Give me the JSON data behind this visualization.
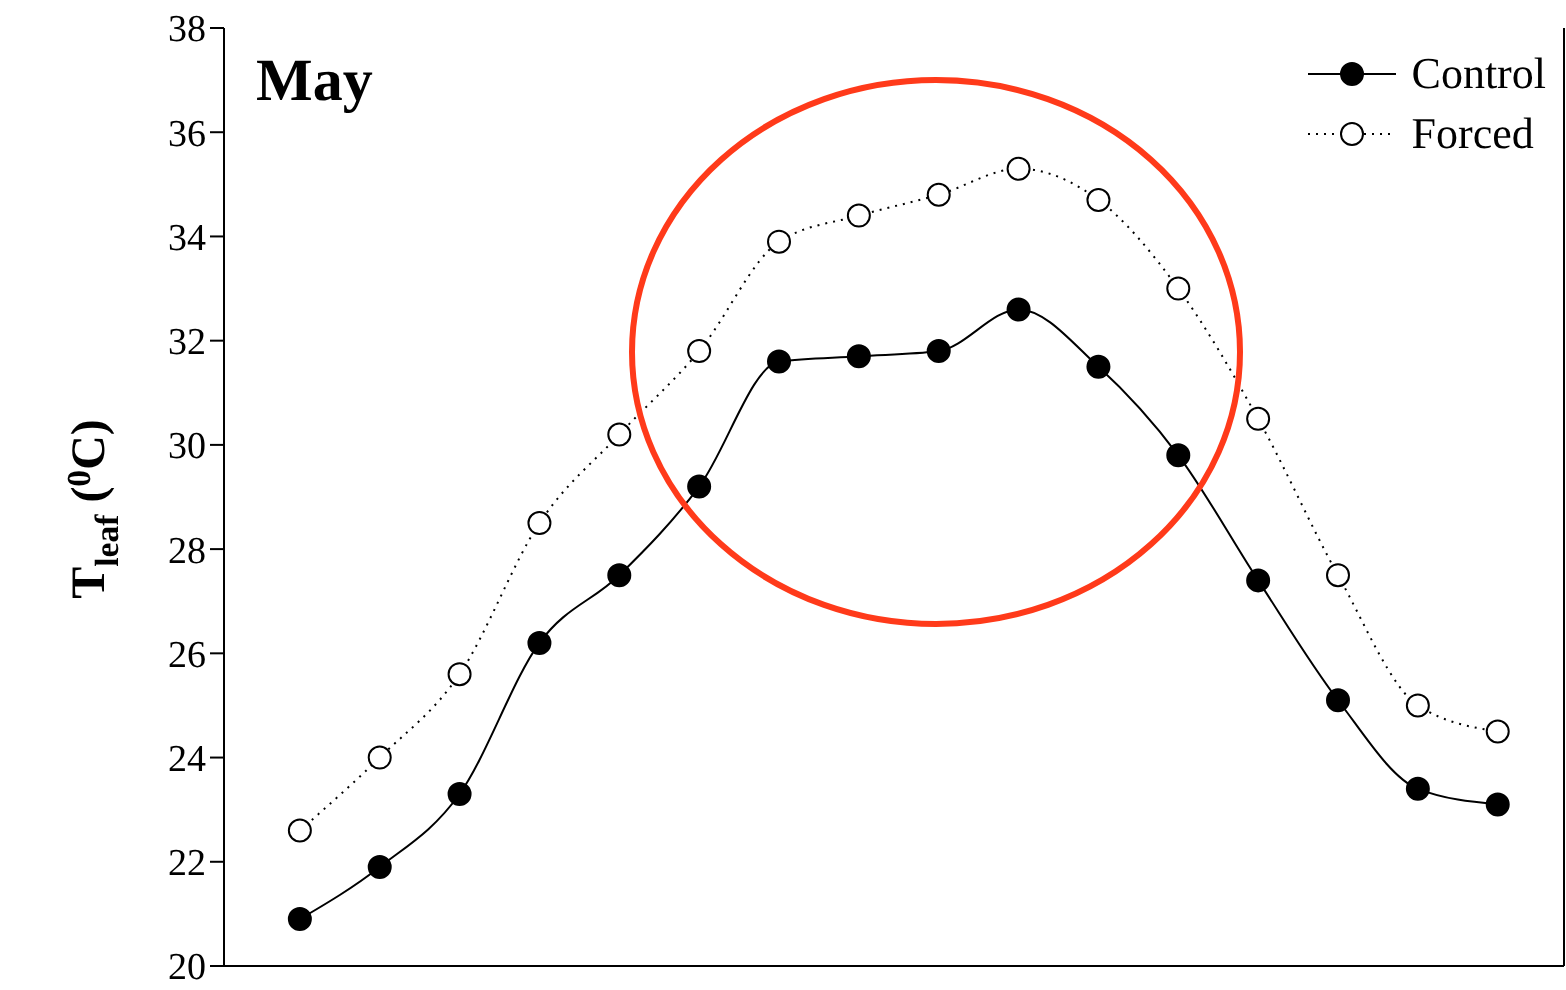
{
  "chart_data": {
    "type": "line",
    "title": "May",
    "ylabel": "T$_{leaf}$ ($^{0}$C)",
    "categories": [
      null,
      null,
      null,
      null,
      null,
      null,
      null,
      null,
      null,
      null,
      null,
      null,
      null,
      null,
      null,
      null
    ],
    "series": [
      {
        "name": "Control",
        "color": "#000000",
        "line_style": "solid",
        "values": [
          20.9,
          21.9,
          23.3,
          26.2,
          27.5,
          29.2,
          31.6,
          31.7,
          31.8,
          32.6,
          31.5,
          29.8,
          27.4,
          25.1,
          23.4,
          23.1
        ]
      },
      {
        "name": "Forced",
        "color": "#000000",
        "line_style": "dotted",
        "values": [
          22.6,
          24.0,
          25.6,
          28.5,
          30.2,
          31.8,
          33.9,
          34.4,
          34.8,
          35.3,
          34.7,
          33.0,
          30.5,
          27.5,
          25.0,
          24.5
        ]
      }
    ],
    "ylim": [
      20,
      38
    ],
    "yticks": [
      20,
      22,
      24,
      26,
      28,
      30,
      32,
      34,
      36,
      38
    ],
    "legend": "top right",
    "marker": "circle",
    "tick_labels": "y"
  }
}
